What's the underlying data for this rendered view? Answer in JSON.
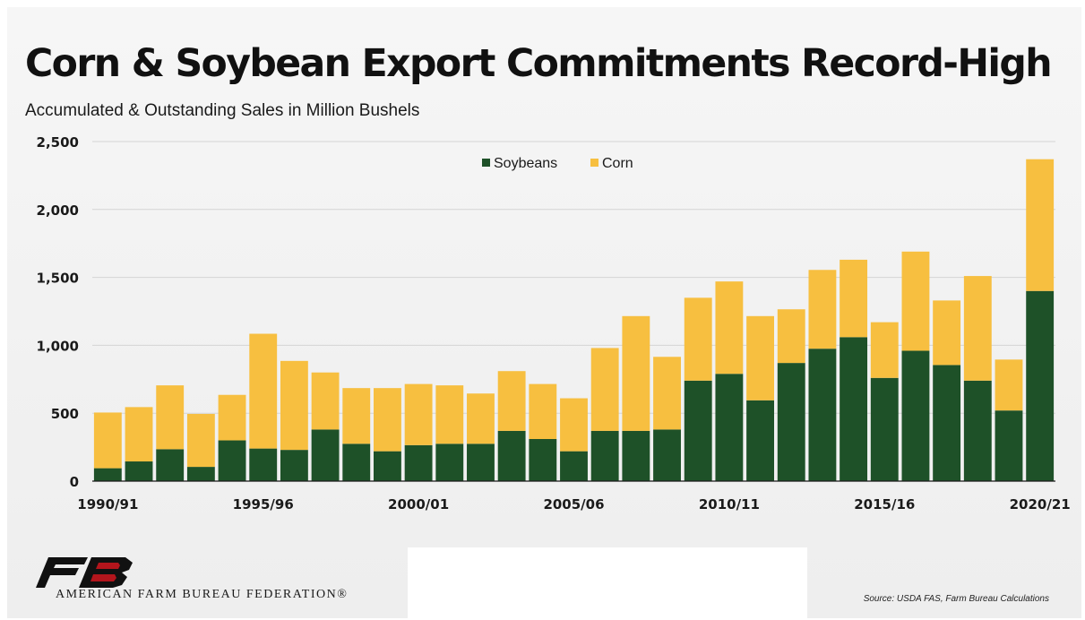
{
  "colors": {
    "soybeans": "#1e5128",
    "corn": "#f7bf40",
    "grid": "#d4d4d4",
    "axis": "#1a1a1a"
  },
  "branding": {
    "logo_icon": "afbf-logo-icon",
    "organization": "AMERICAN FARM BUREAU FEDERATION®"
  },
  "source": "Source: USDA FAS, Farm Bureau Calculations",
  "chart_data": {
    "type": "bar",
    "stacked": true,
    "title": "Corn & Soybean Export Commitments Record-High",
    "subtitle": "Accumulated & Outstanding Sales in Million Bushels",
    "categories": [
      "1990/91",
      "1991/92",
      "1992/93",
      "1993/94",
      "1994/95",
      "1995/96",
      "1996/97",
      "1997/98",
      "1998/99",
      "1999/00",
      "2000/01",
      "2001/02",
      "2002/03",
      "2003/04",
      "2004/05",
      "2005/06",
      "2006/07",
      "2007/08",
      "2008/09",
      "2009/10",
      "2010/11",
      "2011/12",
      "2012/13",
      "2013/14",
      "2014/15",
      "2015/16",
      "2016/17",
      "2017/18",
      "2018/19",
      "2019/20",
      "2020/21"
    ],
    "x_tick_labels": [
      {
        "index": 0,
        "label": "1990/91"
      },
      {
        "index": 5,
        "label": "1995/96"
      },
      {
        "index": 10,
        "label": "2000/01"
      },
      {
        "index": 15,
        "label": "2005/06"
      },
      {
        "index": 20,
        "label": "2010/11"
      },
      {
        "index": 25,
        "label": "2015/16"
      },
      {
        "index": 30,
        "label": "2020/21"
      }
    ],
    "y_ticks": [
      0,
      500,
      1000,
      1500,
      2000,
      2500
    ],
    "y_tick_labels": [
      "0",
      "500",
      "1,000",
      "1,500",
      "2,000",
      "2,500"
    ],
    "ylim": [
      0,
      2500
    ],
    "grid": true,
    "legend_position": "top-center",
    "series": [
      {
        "name": "Soybeans",
        "color": "#1e5128",
        "values": [
          95,
          145,
          235,
          105,
          300,
          240,
          230,
          380,
          275,
          220,
          265,
          275,
          275,
          370,
          310,
          220,
          370,
          370,
          380,
          740,
          790,
          595,
          870,
          975,
          1060,
          760,
          960,
          855,
          740,
          520,
          1400
        ]
      },
      {
        "name": "Corn",
        "color": "#f7bf40",
        "values": [
          410,
          400,
          470,
          390,
          335,
          845,
          655,
          420,
          410,
          465,
          450,
          430,
          370,
          440,
          405,
          390,
          610,
          845,
          535,
          610,
          680,
          620,
          395,
          580,
          570,
          410,
          730,
          475,
          770,
          375,
          970
        ]
      }
    ]
  }
}
